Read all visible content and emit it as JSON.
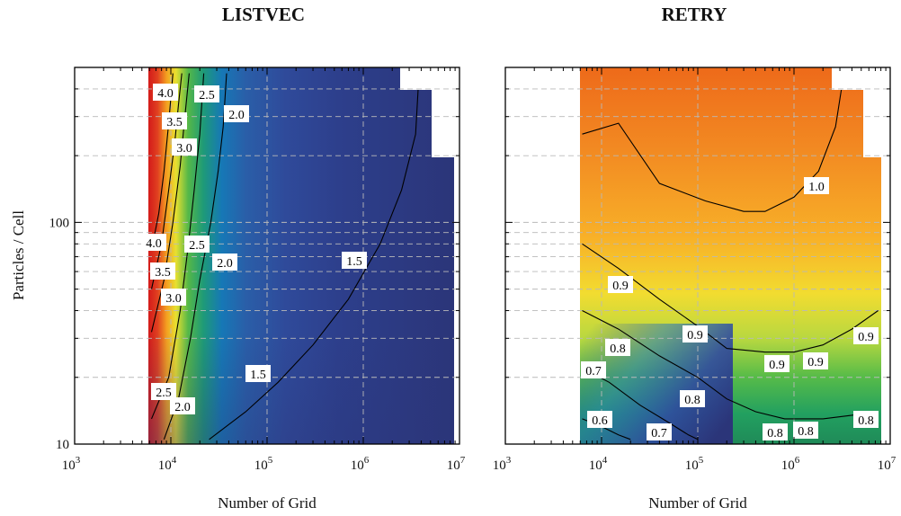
{
  "chart_data": [
    {
      "type": "heatmap",
      "subtype": "filled-contour",
      "title": "LISTVEC",
      "xlabel": "Number of Grid",
      "ylabel": "Particles / Cell",
      "x_scale": "log",
      "y_scale": "log",
      "xlim": [
        1000,
        10000000
      ],
      "ylim": [
        10,
        500
      ],
      "x_ticks": [
        "10",
        "10",
        "10",
        "10",
        "10"
      ],
      "x_tick_exponents": [
        "3",
        "4",
        "5",
        "6",
        "7"
      ],
      "x_tick_values": [
        1000,
        10000,
        100000,
        1000000,
        10000000
      ],
      "y_ticks": [
        "10",
        "100"
      ],
      "y_tick_values": [
        10,
        100
      ],
      "grid": true,
      "colormap": "jet",
      "contour_levels": [
        1.5,
        2.0,
        2.5,
        3.0,
        3.5,
        4.0
      ],
      "contour_labels": [
        "4.0",
        "2.5",
        "2.0",
        "3.5",
        "3.0",
        "4.0",
        "2.5",
        "2.0",
        "1.5",
        "3.5",
        "3.0",
        "1.5",
        "2.5",
        "2.0"
      ],
      "contours": [
        {
          "level": 1.5,
          "points": [
            [
              25000,
              10.5
            ],
            [
              60000,
              14
            ],
            [
              130000,
              19
            ],
            [
              300000,
              28
            ],
            [
              700000,
              45
            ],
            [
              1500000,
              80
            ],
            [
              2500000,
              140
            ],
            [
              3500000,
              250
            ],
            [
              3800000,
              470
            ]
          ]
        },
        {
          "level": 2.0,
          "points": [
            [
              8500,
              10.5
            ],
            [
              12000,
              16
            ],
            [
              16000,
              30
            ],
            [
              20000,
              55
            ],
            [
              26000,
              100
            ],
            [
              31000,
              170
            ],
            [
              35000,
              270
            ],
            [
              38000,
              470
            ]
          ]
        },
        {
          "level": 2.5,
          "points": [
            [
              6300,
              13
            ],
            [
              9500,
              20
            ],
            [
              12500,
              40
            ],
            [
              15000,
              75
            ],
            [
              17500,
              140
            ],
            [
              20000,
              250
            ],
            [
              22000,
              470
            ]
          ]
        },
        {
          "level": 3.0,
          "points": [
            [
              6300,
              32
            ],
            [
              8500,
              55
            ],
            [
              10500,
              100
            ],
            [
              12500,
              180
            ],
            [
              14000,
              300
            ],
            [
              15500,
              470
            ]
          ]
        },
        {
          "level": 3.5,
          "points": [
            [
              6300,
              50
            ],
            [
              8000,
              80
            ],
            [
              9500,
              140
            ],
            [
              11000,
              230
            ],
            [
              12000,
              340
            ],
            [
              13000,
              470
            ]
          ]
        },
        {
          "level": 4.0,
          "points": [
            [
              6300,
              75
            ],
            [
              7500,
              110
            ],
            [
              8500,
              170
            ],
            [
              9500,
              280
            ],
            [
              10500,
              470
            ]
          ]
        }
      ]
    },
    {
      "type": "heatmap",
      "subtype": "filled-contour",
      "title": "RETRY",
      "xlabel": "Number of Grid",
      "ylabel": "",
      "x_scale": "log",
      "y_scale": "log",
      "xlim": [
        1000,
        10000000
      ],
      "ylim": [
        10,
        500
      ],
      "x_ticks": [
        "10",
        "10",
        "10",
        "10",
        "10"
      ],
      "x_tick_exponents": [
        "3",
        "4",
        "5",
        "6",
        "7"
      ],
      "x_tick_values": [
        1000,
        10000,
        100000,
        1000000,
        10000000
      ],
      "grid": true,
      "colormap": "jet",
      "contour_levels": [
        0.6,
        0.7,
        0.8,
        0.9,
        1.0
      ],
      "contour_labels": [
        "1.0",
        "0.9",
        "0.9",
        "0.9",
        "0.9",
        "0.9",
        "0.8",
        "0.7",
        "0.8",
        "0.6",
        "0.7",
        "0.8",
        "0.8",
        "0.8"
      ],
      "contours": [
        {
          "level": 1.0,
          "points": [
            [
              6300,
              250
            ],
            [
              15000,
              280
            ],
            [
              40000,
              150
            ],
            [
              120000,
              125
            ],
            [
              300000,
              112
            ],
            [
              500000,
              112
            ],
            [
              1000000,
              130
            ],
            [
              1800000,
              170
            ],
            [
              2700000,
              270
            ],
            [
              3300000,
              470
            ]
          ]
        },
        {
          "level": 0.9,
          "points": [
            [
              6300,
              80
            ],
            [
              15000,
              62
            ],
            [
              40000,
              45
            ],
            [
              100000,
              34
            ],
            [
              200000,
              27
            ],
            [
              500000,
              26
            ],
            [
              1000000,
              26
            ],
            [
              2000000,
              28
            ],
            [
              4000000,
              33
            ],
            [
              7500000,
              40
            ]
          ]
        },
        {
          "level": 0.8,
          "points": [
            [
              6300,
              40
            ],
            [
              15000,
              33
            ],
            [
              40000,
              25
            ],
            [
              100000,
              20
            ],
            [
              200000,
              16
            ],
            [
              400000,
              14
            ],
            [
              800000,
              13
            ],
            [
              2000000,
              13
            ],
            [
              4000000,
              13.5
            ],
            [
              7500000,
              14
            ]
          ]
        },
        {
          "level": 0.7,
          "points": [
            [
              6300,
              22
            ],
            [
              12000,
              19
            ],
            [
              25000,
              15
            ],
            [
              50000,
              12.5
            ],
            [
              80000,
              11
            ],
            [
              100000,
              10.5
            ]
          ]
        },
        {
          "level": 0.6,
          "points": [
            [
              6300,
              13
            ],
            [
              10000,
              12
            ],
            [
              15000,
              11
            ],
            [
              20000,
              10.5
            ]
          ]
        }
      ]
    }
  ]
}
